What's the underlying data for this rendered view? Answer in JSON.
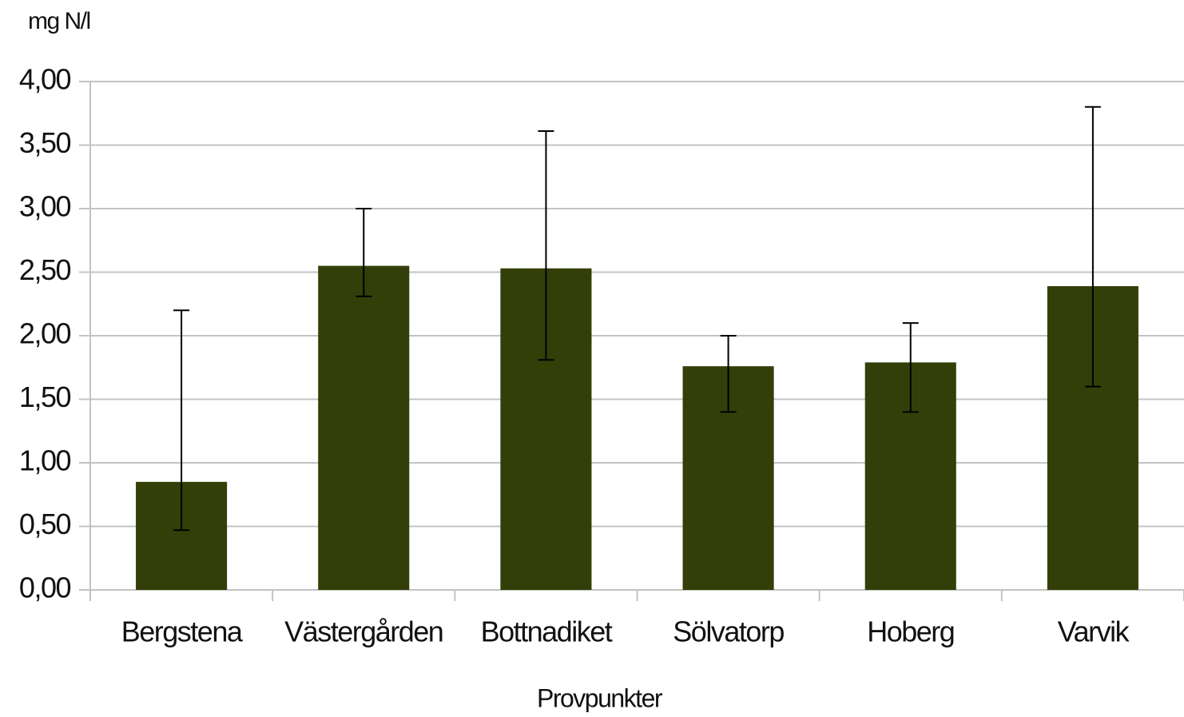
{
  "chart_data": {
    "type": "bar",
    "y_axis_label": "mg N/l",
    "x_axis_label": "Provpunkter",
    "categories": [
      "Bergstena",
      "Västergården",
      "Bottnadiket",
      "Sölvatorp",
      "Hoberg",
      "Varvik"
    ],
    "values": [
      0.85,
      2.55,
      2.53,
      1.76,
      1.79,
      2.39
    ],
    "low": [
      0.47,
      2.31,
      1.81,
      1.4,
      1.4,
      1.6
    ],
    "high": [
      2.2,
      3.0,
      3.61,
      2.0,
      2.1,
      3.8
    ],
    "color": "#333f08",
    "ylim": [
      0,
      4
    ],
    "yticks": [
      {
        "value": 0,
        "label": "0,00"
      },
      {
        "value": 0.5,
        "label": "0,50"
      },
      {
        "value": 1,
        "label": "1,00"
      },
      {
        "value": 1.5,
        "label": "1,50"
      },
      {
        "value": 2,
        "label": "2,00"
      },
      {
        "value": 2.5,
        "label": "2,50"
      },
      {
        "value": 3,
        "label": "3,00"
      },
      {
        "value": 3.5,
        "label": "3,50"
      },
      {
        "value": 4,
        "label": "4,00"
      }
    ],
    "grid": true
  }
}
